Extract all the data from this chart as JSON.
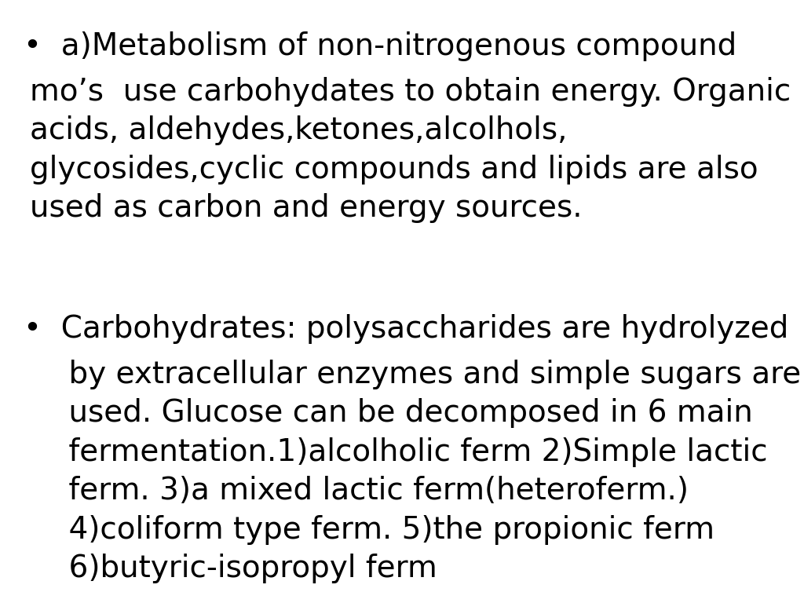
{
  "background_color": "#ffffff",
  "text_color": "#000000",
  "bullet1_header": "•  a)Metabolism of non-nitrogenous compound",
  "bullet1_body": "mo’s  use carbohydates to obtain energy. Organic\nacids, aldehydes,ketones,alcolhols,\nglycosides,cyclic compounds and lipids are also\nused as carbon and energy sources.",
  "bullet2_header": "•  Carbohydrates: polysaccharides are hydrolyzed",
  "bullet2_body": "    by extracellular enzymes and simple sugars are\n    used. Glucose can be decomposed in 6 main\n    fermentation.1)alcolholic ferm 2)Simple lactic\n    ferm. 3)a mixed lactic ferm(heteroferm.)\n    4)coliform type ferm. 5)the propionic ferm\n    6)butyric-isopropyl ferm",
  "font_size": 28,
  "figsize": [
    10.24,
    7.68
  ],
  "dpi": 100
}
